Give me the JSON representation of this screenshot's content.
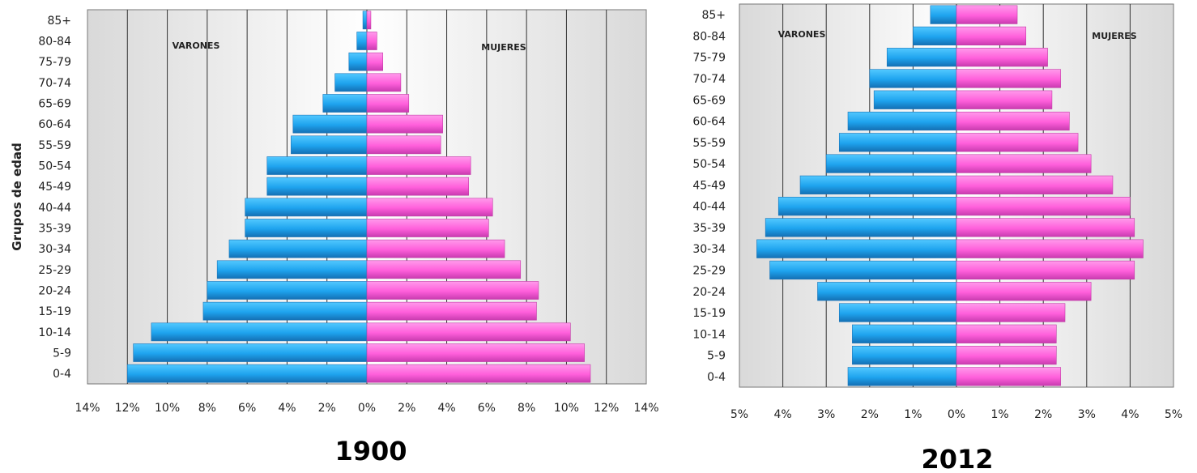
{
  "colors": {
    "male": "#22aaf0",
    "male_dark": "#1a74b8",
    "female": "#ff66dd",
    "female_dark": "#c23aa6",
    "grid": "#333333"
  },
  "chart_data": [
    {
      "type": "bar",
      "orientation": "horizontal-pyramid",
      "title": "1900",
      "ylabel": "Grupos de edad",
      "categories": [
        "0-4",
        "5-9",
        "10-14",
        "15-19",
        "20-24",
        "25-29",
        "30-34",
        "35-39",
        "40-44",
        "45-49",
        "50-54",
        "55-59",
        "60-64",
        "65-69",
        "70-74",
        "75-79",
        "80-84",
        "85+"
      ],
      "series": [
        {
          "name": "VARONES",
          "values": [
            12.0,
            11.7,
            10.8,
            8.2,
            8.0,
            7.5,
            6.9,
            6.1,
            6.1,
            5.0,
            5.0,
            3.8,
            3.7,
            2.2,
            1.6,
            0.9,
            0.5,
            0.2
          ]
        },
        {
          "name": "MUJERES",
          "values": [
            11.2,
            10.9,
            10.2,
            8.5,
            8.6,
            7.7,
            6.9,
            6.1,
            6.3,
            5.1,
            5.2,
            3.7,
            3.8,
            2.1,
            1.7,
            0.8,
            0.5,
            0.2
          ]
        }
      ],
      "xlim": [
        -14,
        14
      ],
      "xticks": [
        "14%",
        "12%",
        "10%",
        "8%",
        "6%",
        "4%",
        "2%",
        "0%",
        "2%",
        "4%",
        "6%",
        "8%",
        "10%",
        "12%",
        "14%"
      ],
      "grid": true
    },
    {
      "type": "bar",
      "orientation": "horizontal-pyramid",
      "title": "2012",
      "ylabel": "",
      "categories": [
        "0-4",
        "5-9",
        "10-14",
        "15-19",
        "20-24",
        "25-29",
        "30-34",
        "35-39",
        "40-44",
        "45-49",
        "50-54",
        "55-59",
        "60-64",
        "65-69",
        "70-74",
        "75-79",
        "80-84",
        "85+"
      ],
      "series": [
        {
          "name": "VARONES",
          "values": [
            2.5,
            2.4,
            2.4,
            2.7,
            3.2,
            4.3,
            4.6,
            4.4,
            4.1,
            3.6,
            3.0,
            2.7,
            2.5,
            1.9,
            2.0,
            1.6,
            1.0,
            0.6
          ]
        },
        {
          "name": "MUJERES",
          "values": [
            2.4,
            2.3,
            2.3,
            2.5,
            3.1,
            4.1,
            4.3,
            4.1,
            4.0,
            3.6,
            3.1,
            2.8,
            2.6,
            2.2,
            2.4,
            2.1,
            1.6,
            1.4
          ]
        }
      ],
      "xlim": [
        -5,
        5
      ],
      "xticks": [
        "5%",
        "4%",
        "3%",
        "2%",
        "1%",
        "0%",
        "1%",
        "2%",
        "3%",
        "4%",
        "5%"
      ],
      "grid": true
    }
  ]
}
